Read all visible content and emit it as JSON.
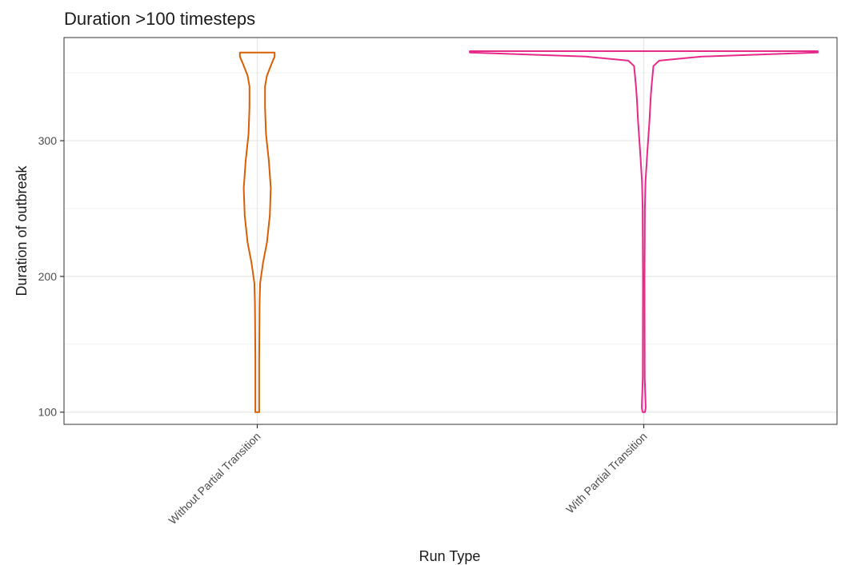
{
  "chart_data": {
    "type": "violin",
    "title": "Duration >100 timesteps",
    "xlabel": "Run Type",
    "ylabel": "Duration of outbreak",
    "categories": [
      "Without Partial Transition",
      "With Partial Transition"
    ],
    "ylim": [
      91,
      376
    ],
    "yticks": [
      100,
      200,
      300
    ],
    "grid": true,
    "legend": "none",
    "colors": [
      "#d95f02",
      "#e7298a"
    ],
    "series": [
      {
        "category": "Without Partial Transition",
        "min": 100,
        "max": 365,
        "density_profile": [
          {
            "y": 100,
            "halfwidth": 0.01
          },
          {
            "y": 140,
            "halfwidth": 0.01
          },
          {
            "y": 180,
            "halfwidth": 0.012
          },
          {
            "y": 195,
            "halfwidth": 0.015
          },
          {
            "y": 210,
            "halfwidth": 0.03
          },
          {
            "y": 225,
            "halfwidth": 0.05
          },
          {
            "y": 245,
            "halfwidth": 0.065
          },
          {
            "y": 265,
            "halfwidth": 0.07
          },
          {
            "y": 285,
            "halfwidth": 0.06
          },
          {
            "y": 305,
            "halfwidth": 0.045
          },
          {
            "y": 325,
            "halfwidth": 0.04
          },
          {
            "y": 340,
            "halfwidth": 0.04
          },
          {
            "y": 348,
            "halfwidth": 0.05
          },
          {
            "y": 357,
            "halfwidth": 0.075
          },
          {
            "y": 362,
            "halfwidth": 0.09
          },
          {
            "y": 365,
            "halfwidth": 0.09
          }
        ]
      },
      {
        "category": "With Partial Transition",
        "min": 100,
        "max": 366,
        "density_profile": [
          {
            "y": 100,
            "halfwidth": 0.006
          },
          {
            "y": 103,
            "halfwidth": 0.01
          },
          {
            "y": 108,
            "halfwidth": 0.009
          },
          {
            "y": 125,
            "halfwidth": 0.005
          },
          {
            "y": 200,
            "halfwidth": 0.004
          },
          {
            "y": 250,
            "halfwidth": 0.006
          },
          {
            "y": 270,
            "halfwidth": 0.009
          },
          {
            "y": 290,
            "halfwidth": 0.018
          },
          {
            "y": 315,
            "halfwidth": 0.03
          },
          {
            "y": 330,
            "halfwidth": 0.035
          },
          {
            "y": 340,
            "halfwidth": 0.04
          },
          {
            "y": 355,
            "halfwidth": 0.05
          },
          {
            "y": 359,
            "halfwidth": 0.08
          },
          {
            "y": 362,
            "halfwidth": 0.3
          },
          {
            "y": 365,
            "halfwidth": 0.9
          },
          {
            "y": 366,
            "halfwidth": 0.9
          }
        ]
      }
    ]
  }
}
